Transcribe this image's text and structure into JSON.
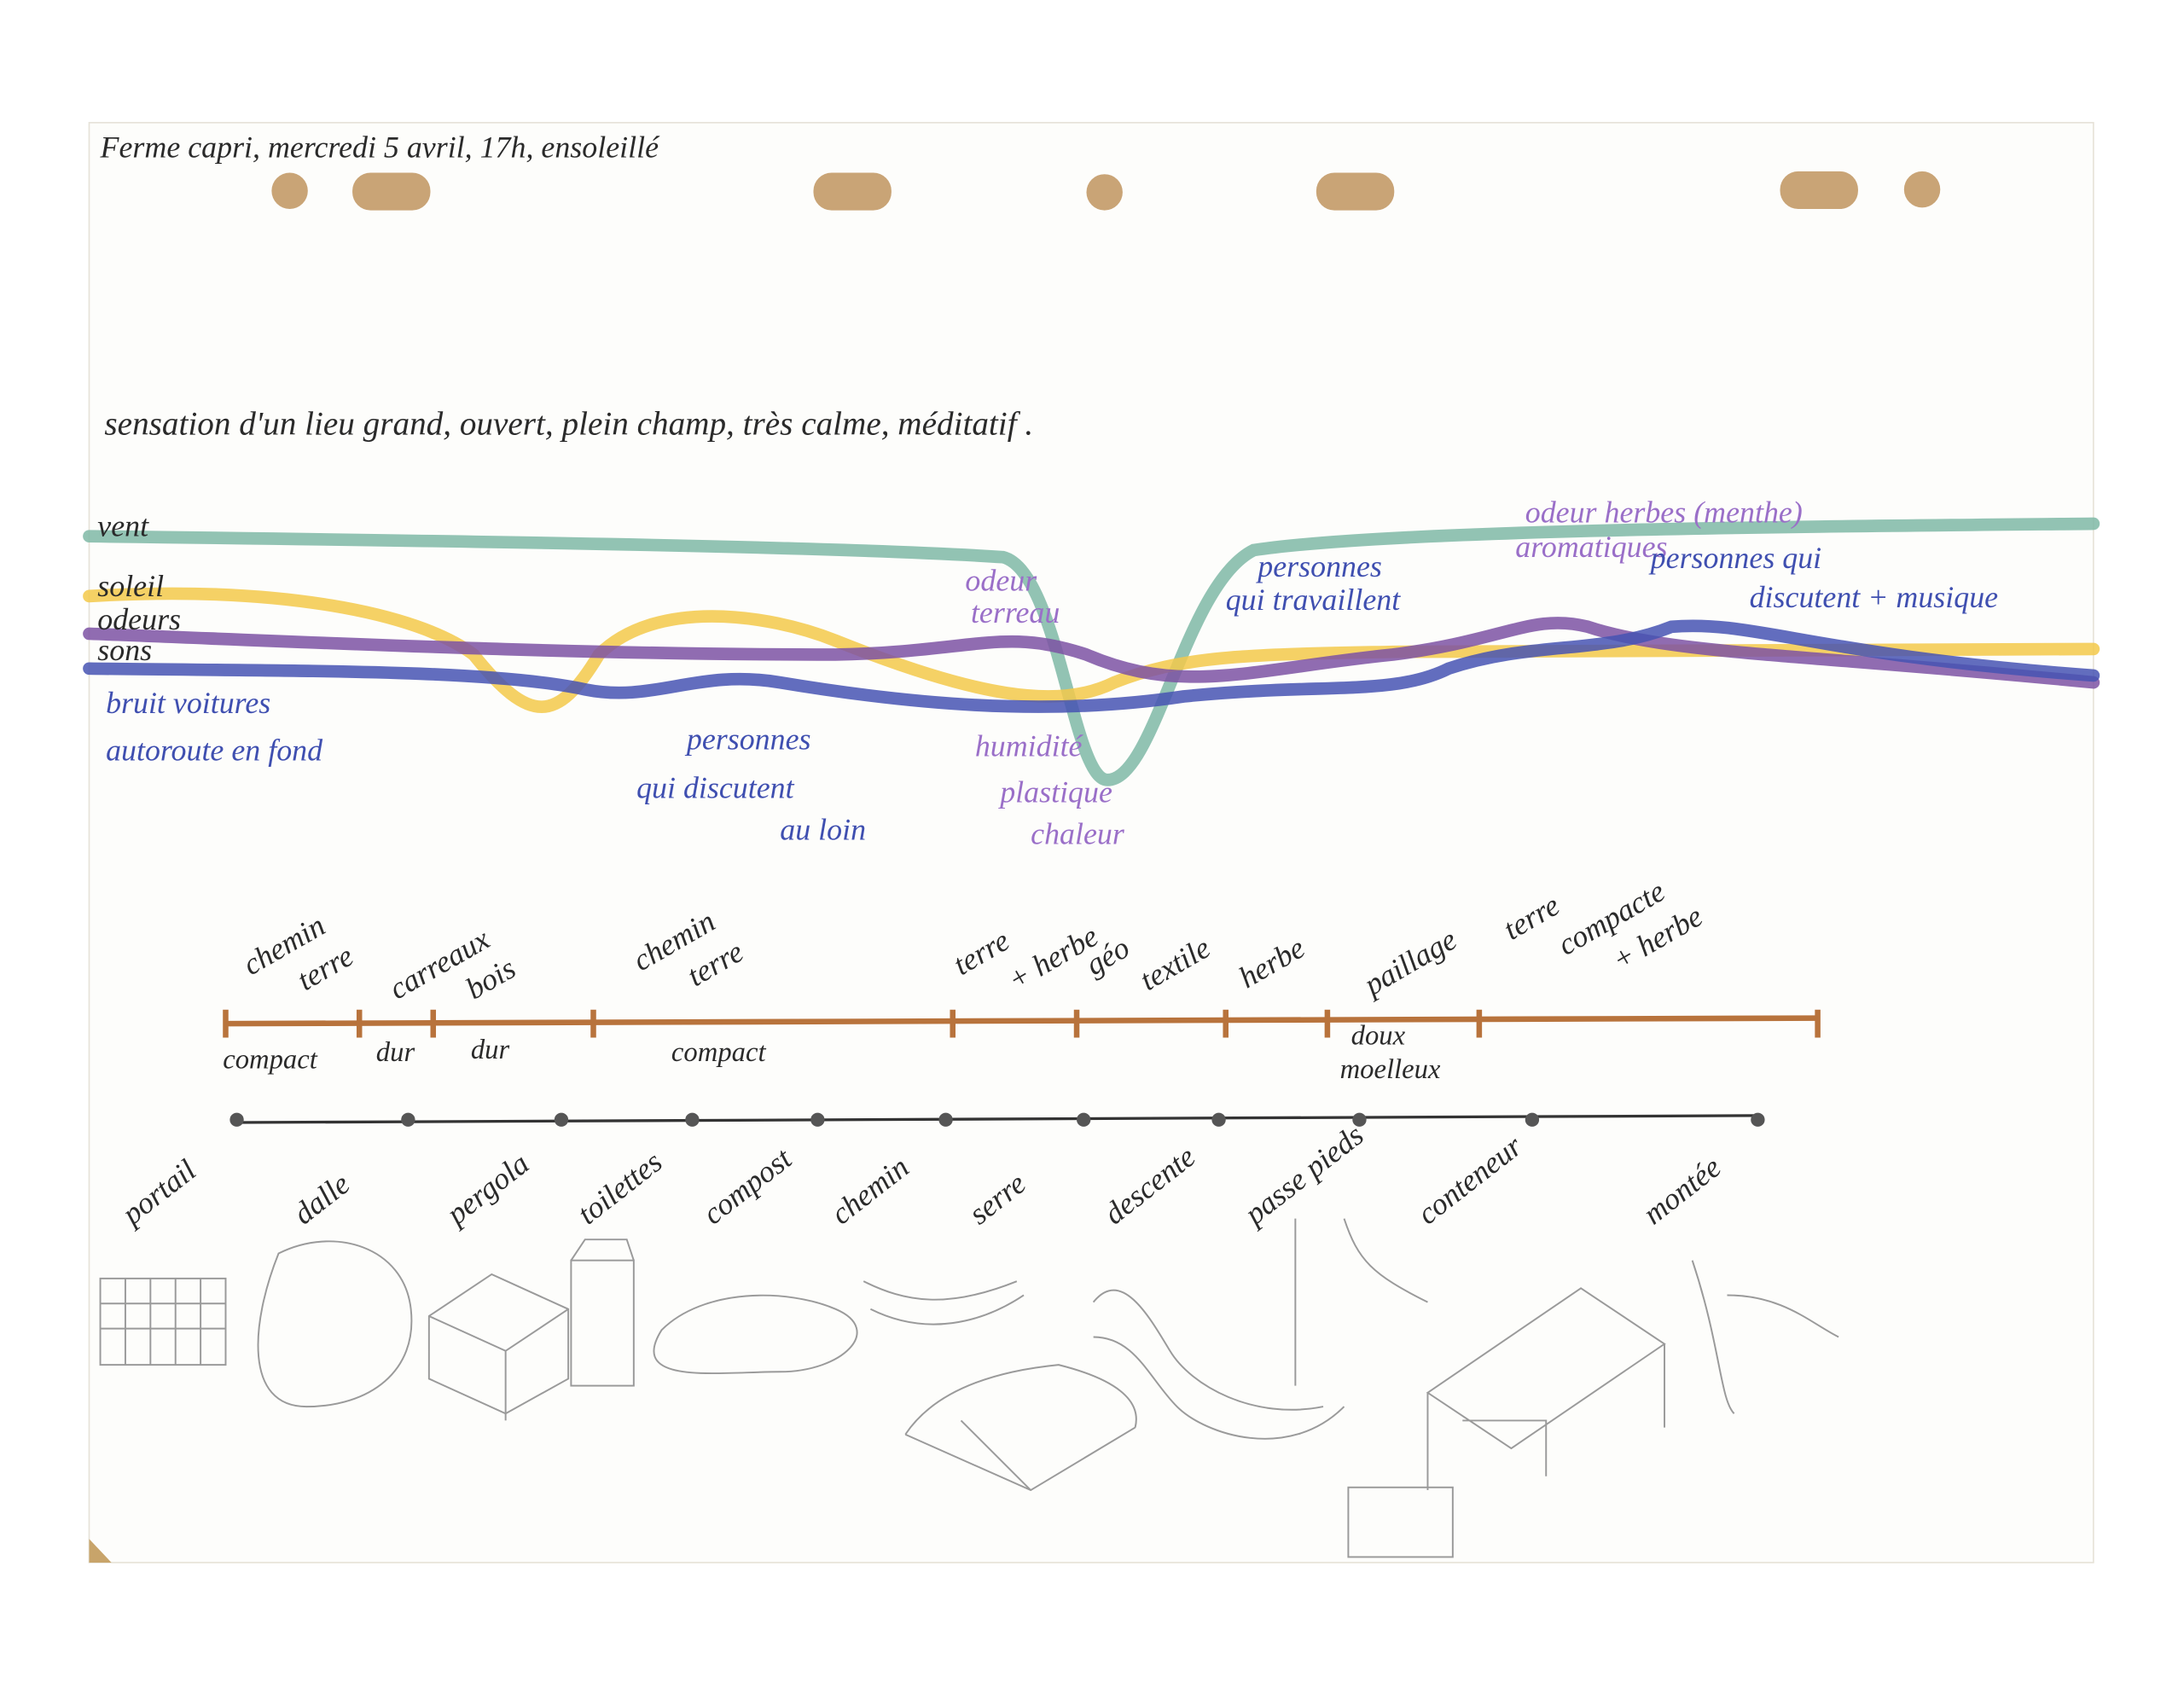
{
  "header": {
    "title": "Ferme capri, mercredi 5 avril, 17h, ensoleillé",
    "impression": "sensation d'un lieu grand, ouvert, plein champ, très calme, méditatif ."
  },
  "layers": [
    {
      "name": "vent",
      "color": "#7fb8a6"
    },
    {
      "name": "soleil",
      "color": "#f3c94a"
    },
    {
      "name": "odeurs",
      "color": "#7d52a3"
    },
    {
      "name": "sons",
      "color": "#4653b3"
    }
  ],
  "annotations": [
    {
      "lines": [
        "bruit voitures",
        "autoroute en fond"
      ],
      "color": "#3f4fb0"
    },
    {
      "lines": [
        "personnes",
        "qui discutent",
        "au loin"
      ],
      "color": "#3f4fb0"
    },
    {
      "lines": [
        "odeur",
        "terreau"
      ],
      "color": "#9a6fc8"
    },
    {
      "lines": [
        "humidité",
        "plastique",
        "chaleur"
      ],
      "color": "#9a6fc8"
    },
    {
      "lines": [
        "personnes",
        "qui travaillent"
      ],
      "color": "#3f4fb0"
    },
    {
      "lines": [
        "odeur herbes (menthe)",
        "aromatiques"
      ],
      "color": "#9a6fc8"
    },
    {
      "lines": [
        "personnes qui",
        "discutent + musique"
      ],
      "color": "#3f4fb0"
    }
  ],
  "ground": {
    "materials": [
      {
        "lines": [
          "chemin",
          "terre"
        ]
      },
      {
        "lines": [
          "carreaux"
        ]
      },
      {
        "lines": [
          "bois"
        ]
      },
      {
        "lines": [
          "chemin",
          "terre"
        ]
      },
      {
        "lines": [
          "terre",
          "+ herbe"
        ]
      },
      {
        "lines": [
          "géo",
          "textile"
        ]
      },
      {
        "lines": [
          "herbe"
        ]
      },
      {
        "lines": [
          "paillage"
        ]
      },
      {
        "lines": [
          "terre",
          "compacte",
          "+ herbe"
        ]
      }
    ],
    "qualities": [
      {
        "lines": [
          "compact"
        ]
      },
      {
        "lines": [
          "dur"
        ]
      },
      {
        "lines": [
          "dur"
        ]
      },
      {
        "lines": [
          "compact"
        ]
      },
      {
        "lines": [
          "doux",
          "moelleux"
        ]
      }
    ]
  },
  "waypoints": [
    "portail",
    "dalle",
    "pergola",
    "toilettes",
    "compost",
    "chemin",
    "serre",
    "descente",
    "passe pieds",
    "conteneur",
    "montée"
  ]
}
